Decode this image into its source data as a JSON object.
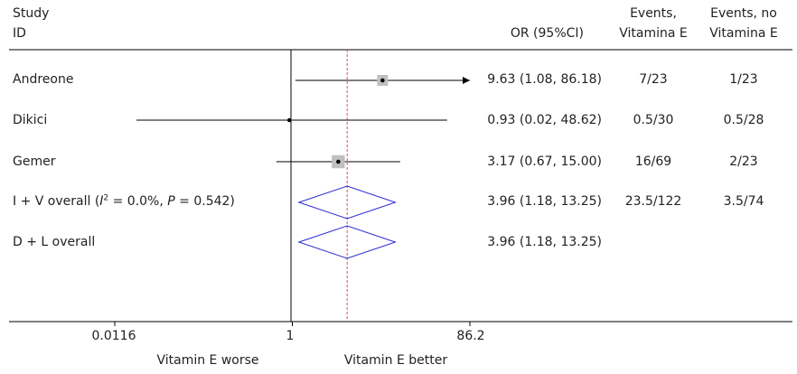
{
  "headers": {
    "study_line1": "Study",
    "study_line2": "ID",
    "or": "OR (95%CI)",
    "events_e_line1": "Events,",
    "events_e_line2": "Vitamina E",
    "events_no_line1": "Events, no",
    "events_no_line2": "Vitamina E"
  },
  "overall_label": {
    "prefix": "I + V overall (",
    "i_symbol": "I",
    "sup": "2",
    "mid": " = 0.0%, ",
    "p_symbol": "P",
    "suffix": " = 0.542)"
  },
  "chart_data": {
    "type": "forest",
    "scale": "log",
    "null_value": 1,
    "overall_estimate": 3.96,
    "x_ticks": [
      {
        "value": 0.0116,
        "label": "0.0116"
      },
      {
        "value": 1,
        "label": "1"
      },
      {
        "value": 86.2,
        "label": "86.2"
      }
    ],
    "x_range": [
      0.0116,
      86.2
    ],
    "left_direction_label": "Vitamin E worse",
    "right_direction_label": "Vitamin E better",
    "studies": [
      {
        "name": "Andreone",
        "or": 9.63,
        "ci_low": 1.08,
        "ci_high": 86.18,
        "or_text": "9.63 (1.08, 86.18)",
        "events_e": "7/23",
        "events_no_e": "1/23",
        "weight": 1.0,
        "arrow_right": true
      },
      {
        "name": "Dikici",
        "or": 0.93,
        "ci_low": 0.02,
        "ci_high": 48.62,
        "or_text": "0.93 (0.02, 48.62)",
        "events_e": "0.5/30",
        "events_no_e": "0.5/28",
        "weight": 0.15,
        "arrow_right": false
      },
      {
        "name": "Gemer",
        "or": 3.17,
        "ci_low": 0.67,
        "ci_high": 15.0,
        "or_text": "3.17 (0.67, 15.00)",
        "events_e": "16/69",
        "events_no_e": "2/23",
        "weight": 1.2,
        "arrow_right": false
      }
    ],
    "summaries": [
      {
        "name": "I + V overall",
        "or": 3.96,
        "ci_low": 1.18,
        "ci_high": 13.25,
        "or_text": "3.96 (1.18, 13.25)",
        "events_e": "23.5/122",
        "events_no_e": "3.5/74"
      },
      {
        "name": "D + L overall",
        "or": 3.96,
        "ci_low": 1.18,
        "ci_high": 13.25,
        "or_text": "3.96 (1.18, 13.25)",
        "events_e": "",
        "events_no_e": ""
      }
    ],
    "colors": {
      "diamond": "#2a2ad6",
      "ref_dashed": "#d9534f",
      "box": "#c0c0c0",
      "line": "#000000"
    }
  }
}
